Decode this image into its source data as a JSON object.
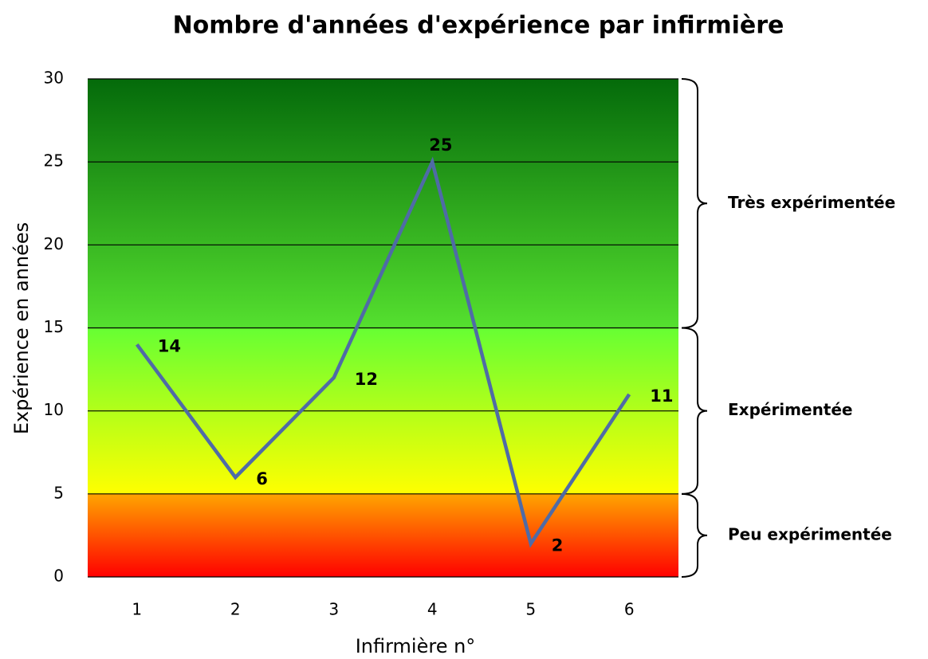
{
  "chart_data": {
    "type": "line",
    "title": "Nombre d'années d'expérience par infirmière",
    "x_label": "Infirmière n°",
    "y_label": "Expérience en années",
    "categories": [
      "1",
      "2",
      "3",
      "4",
      "5",
      "6"
    ],
    "series": [
      {
        "name": "Expérience",
        "color": "#4f6ba6",
        "values": [
          14,
          6,
          12,
          25,
          2,
          11
        ]
      }
    ],
    "ylim": [
      0,
      30
    ],
    "yticks": [
      0,
      5,
      10,
      15,
      20,
      25,
      30
    ],
    "grid": true,
    "bands": [
      {
        "label": "Peu expérimentée",
        "from": 0,
        "to": 5,
        "colors": [
          "#ff0000",
          "#ffa500"
        ]
      },
      {
        "label": "Expérimentée",
        "from": 5,
        "to": 15,
        "colors": [
          "#ffff00",
          "#66ff33"
        ]
      },
      {
        "label": "Très expérimentée",
        "from": 15,
        "to": 30,
        "colors": [
          "#55e02f",
          "#046a0a"
        ]
      }
    ]
  }
}
